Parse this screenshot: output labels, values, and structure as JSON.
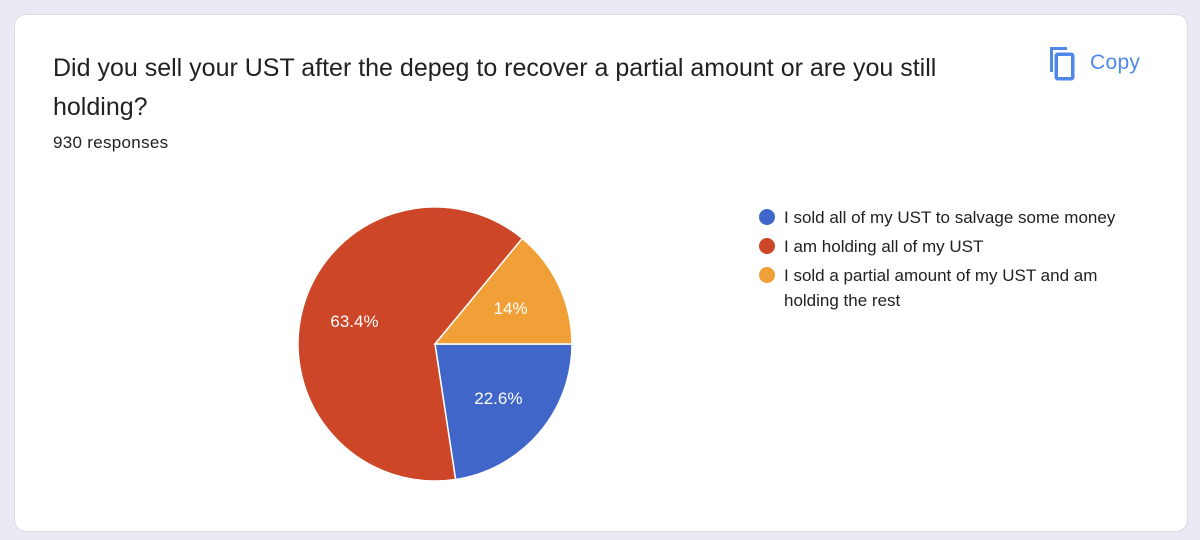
{
  "question": {
    "title": "Did you sell your UST after the depeg to recover a partial amount or are you still holding?",
    "responses": "930 responses"
  },
  "actions": {
    "copy_label": "Copy",
    "copy_icon": "copy-icon"
  },
  "colors": {
    "blue": "#3f66c8",
    "red": "#cc4627",
    "orange": "#f1a038",
    "accent": "#4f88e8"
  },
  "chart_data": {
    "type": "pie",
    "title": "",
    "categories": [
      "I sold all of my UST to salvage some money",
      "I am holding all of my UST",
      "I sold a partial amount of my UST and am holding the rest"
    ],
    "values": [
      22.6,
      63.4,
      14
    ],
    "value_labels": [
      "22.6%",
      "63.4%",
      "14%"
    ],
    "colors": [
      "#3f66c8",
      "#cc4627",
      "#f1a038"
    ],
    "legend_position": "right"
  }
}
